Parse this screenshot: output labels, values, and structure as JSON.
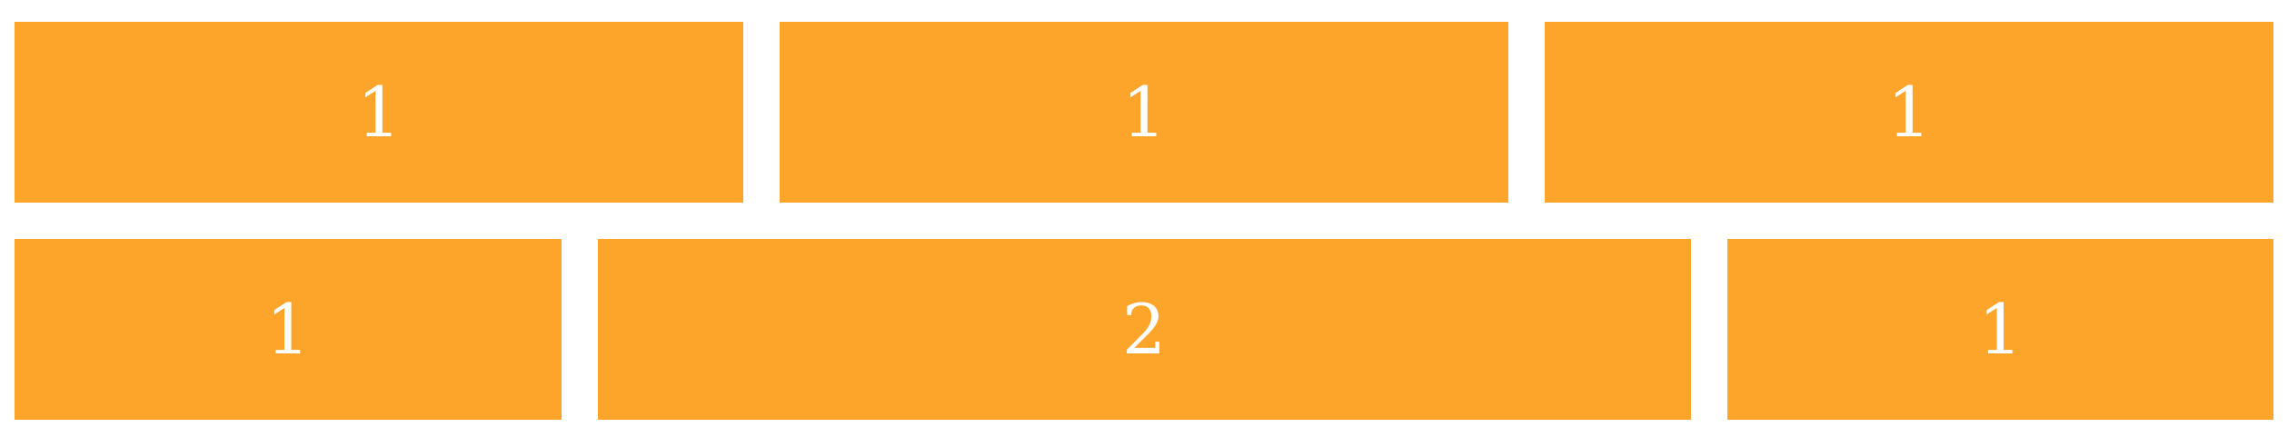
{
  "colors": {
    "cell_background": "#FDA52B",
    "cell_text": "#FFFFFF",
    "page_background": "#FFFFFF"
  },
  "rows": [
    {
      "cells": [
        {
          "label": "1",
          "span": 1
        },
        {
          "label": "1",
          "span": 1
        },
        {
          "label": "1",
          "span": 1
        }
      ]
    },
    {
      "cells": [
        {
          "label": "1",
          "span": 1
        },
        {
          "label": "2",
          "span": 2
        },
        {
          "label": "1",
          "span": 1
        }
      ]
    }
  ]
}
